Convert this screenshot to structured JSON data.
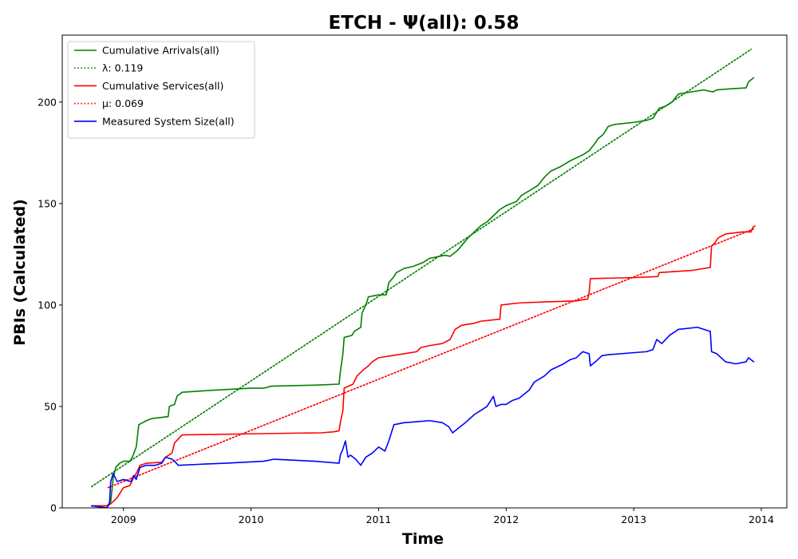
{
  "chart_data": {
    "type": "line",
    "title": "ETCH -  Ψ(all): 0.58",
    "xlabel": "Time",
    "ylabel": "PBIs (Calculated)",
    "xlim": [
      2008.52,
      2014.2
    ],
    "ylim": [
      0,
      233
    ],
    "x_ticks": [
      2009,
      2010,
      2011,
      2012,
      2013,
      2014
    ],
    "x_tick_labels": [
      "2009",
      "2010",
      "2011",
      "2012",
      "2013",
      "2014"
    ],
    "y_ticks": [
      0,
      50,
      100,
      150,
      200
    ],
    "y_tick_labels": [
      "0",
      "50",
      "100",
      "150",
      "200"
    ],
    "grid": false,
    "legend_position": "top-left",
    "series": [
      {
        "name": "Cumulative Arrivals(all)",
        "color": "#008000",
        "style": "solid",
        "points": [
          [
            2008.75,
            1
          ],
          [
            2008.87,
            1
          ],
          [
            2008.9,
            3
          ],
          [
            2008.92,
            15
          ],
          [
            2008.94,
            20
          ],
          [
            2008.97,
            22
          ],
          [
            2009.0,
            23
          ],
          [
            2009.05,
            23
          ],
          [
            2009.07,
            25
          ],
          [
            2009.1,
            30
          ],
          [
            2009.12,
            41
          ],
          [
            2009.15,
            42
          ],
          [
            2009.18,
            43
          ],
          [
            2009.22,
            44
          ],
          [
            2009.35,
            45
          ],
          [
            2009.36,
            50
          ],
          [
            2009.4,
            51
          ],
          [
            2009.42,
            55
          ],
          [
            2009.46,
            57
          ],
          [
            2009.7,
            58
          ],
          [
            2010.0,
            59
          ],
          [
            2010.1,
            59
          ],
          [
            2010.16,
            60
          ],
          [
            2010.5,
            60.5
          ],
          [
            2010.69,
            61
          ],
          [
            2010.7,
            67
          ],
          [
            2010.72,
            76
          ],
          [
            2010.73,
            84
          ],
          [
            2010.79,
            85
          ],
          [
            2010.81,
            87
          ],
          [
            2010.86,
            89
          ],
          [
            2010.87,
            96
          ],
          [
            2010.9,
            100
          ],
          [
            2010.92,
            104
          ],
          [
            2011.0,
            105
          ],
          [
            2011.06,
            105
          ],
          [
            2011.08,
            111
          ],
          [
            2011.12,
            114
          ],
          [
            2011.14,
            116
          ],
          [
            2011.2,
            118
          ],
          [
            2011.27,
            119
          ],
          [
            2011.35,
            121
          ],
          [
            2011.4,
            123
          ],
          [
            2011.52,
            124.5
          ],
          [
            2011.56,
            124
          ],
          [
            2011.62,
            127
          ],
          [
            2011.66,
            130
          ],
          [
            2011.7,
            133
          ],
          [
            2011.75,
            136
          ],
          [
            2011.8,
            139
          ],
          [
            2011.85,
            141
          ],
          [
            2011.9,
            144
          ],
          [
            2011.95,
            147
          ],
          [
            2012.0,
            149
          ],
          [
            2012.08,
            151
          ],
          [
            2012.12,
            154
          ],
          [
            2012.2,
            157
          ],
          [
            2012.25,
            159
          ],
          [
            2012.3,
            163
          ],
          [
            2012.35,
            166
          ],
          [
            2012.42,
            168
          ],
          [
            2012.5,
            171
          ],
          [
            2012.6,
            174
          ],
          [
            2012.65,
            176
          ],
          [
            2012.7,
            180
          ],
          [
            2012.72,
            182
          ],
          [
            2012.76,
            184
          ],
          [
            2012.8,
            188
          ],
          [
            2012.85,
            189
          ],
          [
            2013.0,
            190
          ],
          [
            2013.1,
            191
          ],
          [
            2013.15,
            192
          ],
          [
            2013.2,
            197
          ],
          [
            2013.25,
            198
          ],
          [
            2013.3,
            200
          ],
          [
            2013.35,
            204
          ],
          [
            2013.45,
            205
          ],
          [
            2013.55,
            206
          ],
          [
            2013.62,
            205
          ],
          [
            2013.65,
            206
          ],
          [
            2013.75,
            206.5
          ],
          [
            2013.88,
            207
          ],
          [
            2013.9,
            210
          ],
          [
            2013.92,
            211
          ],
          [
            2013.94,
            212
          ]
        ]
      },
      {
        "name": "λ: 0.119",
        "color": "#008000",
        "style": "dotted",
        "points": [
          [
            2008.75,
            10.5
          ],
          [
            2013.92,
            226
          ]
        ]
      },
      {
        "name": "Cumulative Services(all)",
        "color": "#ff0000",
        "style": "solid",
        "points": [
          [
            2008.75,
            1
          ],
          [
            2008.87,
            1
          ],
          [
            2008.9,
            2
          ],
          [
            2008.95,
            5
          ],
          [
            2009.0,
            10
          ],
          [
            2009.05,
            11
          ],
          [
            2009.08,
            15
          ],
          [
            2009.1,
            17
          ],
          [
            2009.13,
            21
          ],
          [
            2009.18,
            22
          ],
          [
            2009.3,
            22.5
          ],
          [
            2009.33,
            25
          ],
          [
            2009.38,
            27
          ],
          [
            2009.4,
            32
          ],
          [
            2009.43,
            34
          ],
          [
            2009.46,
            36
          ],
          [
            2009.7,
            36.2
          ],
          [
            2010.0,
            36.5
          ],
          [
            2010.3,
            36.8
          ],
          [
            2010.55,
            37
          ],
          [
            2010.65,
            37.5
          ],
          [
            2010.69,
            38
          ],
          [
            2010.7,
            42
          ],
          [
            2010.72,
            48
          ],
          [
            2010.73,
            59
          ],
          [
            2010.8,
            61
          ],
          [
            2010.83,
            65
          ],
          [
            2010.88,
            68
          ],
          [
            2010.92,
            70
          ],
          [
            2010.95,
            72
          ],
          [
            2011.0,
            74
          ],
          [
            2011.1,
            75
          ],
          [
            2011.2,
            76
          ],
          [
            2011.3,
            77
          ],
          [
            2011.33,
            79
          ],
          [
            2011.4,
            80
          ],
          [
            2011.5,
            81
          ],
          [
            2011.56,
            83
          ],
          [
            2011.6,
            88
          ],
          [
            2011.65,
            90
          ],
          [
            2011.75,
            91
          ],
          [
            2011.8,
            92
          ],
          [
            2011.95,
            93
          ],
          [
            2011.96,
            100
          ],
          [
            2012.1,
            101
          ],
          [
            2012.3,
            101.5
          ],
          [
            2012.55,
            102
          ],
          [
            2012.64,
            103
          ],
          [
            2012.65,
            106
          ],
          [
            2012.66,
            113
          ],
          [
            2013.0,
            113.5
          ],
          [
            2013.19,
            114
          ],
          [
            2013.2,
            116
          ],
          [
            2013.45,
            117
          ],
          [
            2013.6,
            118.5
          ],
          [
            2013.61,
            129
          ],
          [
            2013.64,
            131
          ],
          [
            2013.66,
            133
          ],
          [
            2013.72,
            135
          ],
          [
            2013.85,
            136
          ],
          [
            2013.92,
            136
          ],
          [
            2013.93,
            138
          ],
          [
            2013.95,
            139
          ]
        ]
      },
      {
        "name": "μ: 0.069",
        "color": "#ff0000",
        "style": "dotted",
        "points": [
          [
            2008.88,
            10
          ],
          [
            2013.94,
            137.5
          ]
        ]
      },
      {
        "name": "Measured System Size(all)",
        "color": "#0000ff",
        "style": "solid",
        "points": [
          [
            2008.75,
            1
          ],
          [
            2008.87,
            0
          ],
          [
            2008.89,
            2
          ],
          [
            2008.9,
            13
          ],
          [
            2008.92,
            17
          ],
          [
            2008.95,
            13
          ],
          [
            2009.0,
            14
          ],
          [
            2009.06,
            13
          ],
          [
            2009.08,
            16
          ],
          [
            2009.1,
            14
          ],
          [
            2009.13,
            20
          ],
          [
            2009.18,
            21
          ],
          [
            2009.25,
            21
          ],
          [
            2009.3,
            22
          ],
          [
            2009.33,
            25
          ],
          [
            2009.38,
            24
          ],
          [
            2009.4,
            23
          ],
          [
            2009.43,
            21
          ],
          [
            2009.6,
            21.5
          ],
          [
            2009.8,
            22
          ],
          [
            2010.1,
            23
          ],
          [
            2010.18,
            24
          ],
          [
            2010.5,
            23
          ],
          [
            2010.69,
            22
          ],
          [
            2010.7,
            26
          ],
          [
            2010.72,
            29
          ],
          [
            2010.74,
            33
          ],
          [
            2010.76,
            25
          ],
          [
            2010.78,
            26
          ],
          [
            2010.82,
            24
          ],
          [
            2010.86,
            21
          ],
          [
            2010.9,
            25
          ],
          [
            2010.95,
            27
          ],
          [
            2011.0,
            30
          ],
          [
            2011.05,
            28
          ],
          [
            2011.08,
            33
          ],
          [
            2011.1,
            37
          ],
          [
            2011.12,
            41
          ],
          [
            2011.2,
            42
          ],
          [
            2011.3,
            42.5
          ],
          [
            2011.4,
            43
          ],
          [
            2011.5,
            42
          ],
          [
            2011.55,
            40
          ],
          [
            2011.58,
            37
          ],
          [
            2011.62,
            39
          ],
          [
            2011.68,
            42
          ],
          [
            2011.75,
            46
          ],
          [
            2011.8,
            48
          ],
          [
            2011.85,
            50
          ],
          [
            2011.88,
            53
          ],
          [
            2011.9,
            55
          ],
          [
            2011.92,
            50
          ],
          [
            2011.96,
            51
          ],
          [
            2012.0,
            51
          ],
          [
            2012.05,
            53
          ],
          [
            2012.1,
            54
          ],
          [
            2012.18,
            58
          ],
          [
            2012.22,
            62
          ],
          [
            2012.3,
            65
          ],
          [
            2012.35,
            68
          ],
          [
            2012.45,
            71
          ],
          [
            2012.5,
            73
          ],
          [
            2012.55,
            74
          ],
          [
            2012.6,
            77
          ],
          [
            2012.65,
            76
          ],
          [
            2012.66,
            70
          ],
          [
            2012.7,
            72
          ],
          [
            2012.75,
            75
          ],
          [
            2012.8,
            75.5
          ],
          [
            2013.0,
            76.5
          ],
          [
            2013.1,
            77
          ],
          [
            2013.15,
            78
          ],
          [
            2013.18,
            83
          ],
          [
            2013.22,
            81
          ],
          [
            2013.28,
            85
          ],
          [
            2013.35,
            88
          ],
          [
            2013.5,
            89
          ],
          [
            2013.6,
            87
          ],
          [
            2013.61,
            77
          ],
          [
            2013.65,
            76
          ],
          [
            2013.72,
            72
          ],
          [
            2013.8,
            71
          ],
          [
            2013.88,
            72
          ],
          [
            2013.9,
            74
          ],
          [
            2013.92,
            73
          ],
          [
            2013.94,
            72
          ]
        ]
      }
    ]
  }
}
